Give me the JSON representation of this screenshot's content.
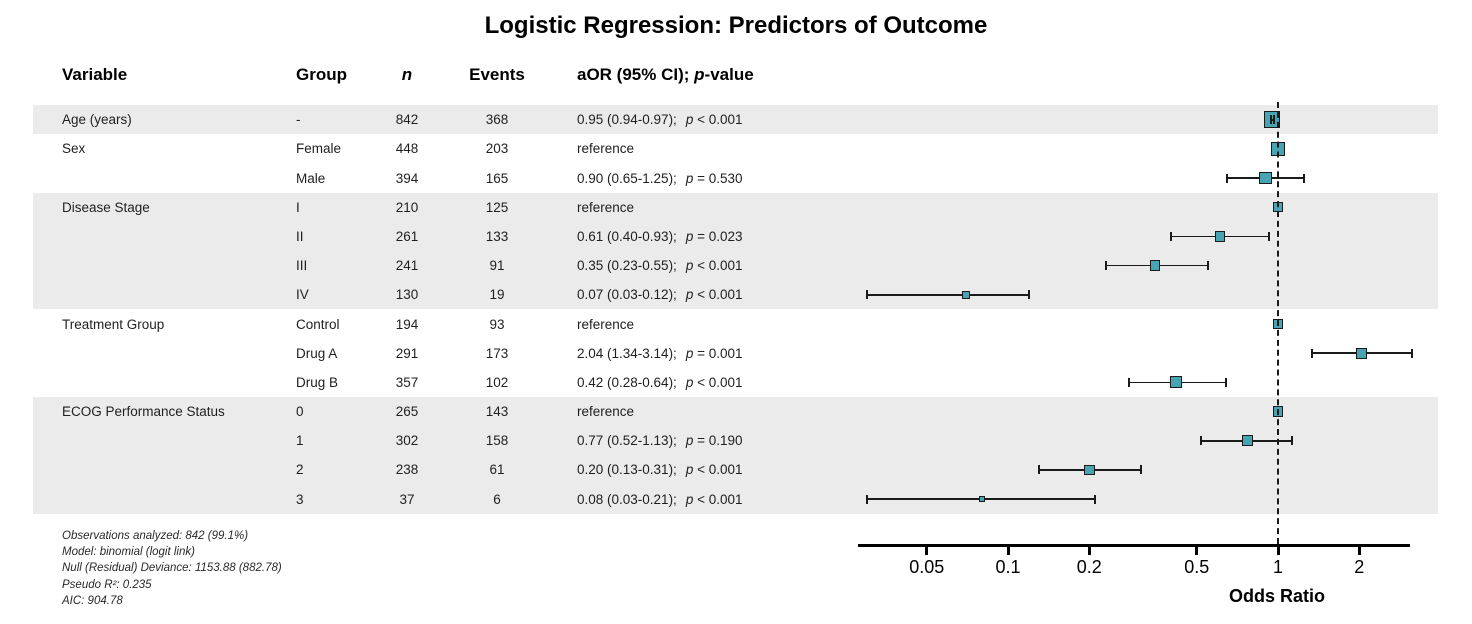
{
  "title": "Logistic Regression: Predictors of Outcome",
  "columns": {
    "variable": "Variable",
    "group": "Group",
    "n": "n",
    "events": "Events",
    "aor_prefix": "aOR (95% CI); ",
    "aor_p": "p",
    "aor_suffix": "-value"
  },
  "axis": {
    "label": "Odds Ratio",
    "tick_values": [
      0.05,
      0.1,
      0.2,
      0.5,
      1,
      2
    ],
    "tick_labels": [
      "0.05",
      "0.1",
      "0.2",
      "0.5",
      "1",
      "2"
    ],
    "scale": "log10",
    "reference_value": 1
  },
  "footnotes": [
    "Observations analyzed: 842 (99.1%)",
    "Model: binomial (logit link)",
    "Null (Residual) Deviance: 1153.88 (882.78)",
    "Pseudo R²: 0.235",
    "AIC: 904.78"
  ],
  "colors": {
    "box_fill": "#47a5b3",
    "box_border": "#1b1b1b",
    "band": "#ebebeb",
    "line": "#1a1a1a",
    "text": "#1f1f1f"
  },
  "chart_data": {
    "type": "scatter",
    "subtype": "forest-plot",
    "x_scale": "log10",
    "xlim": [
      0.028,
      3.2
    ],
    "xlabel": "Odds Ratio",
    "grid": false,
    "reference_line": 1,
    "rows": [
      {
        "variable": "Age (years)",
        "group": "-",
        "n": 842,
        "events": 368,
        "or": 0.95,
        "lo": 0.94,
        "hi": 0.97,
        "or_text": "0.95 (0.94-0.97);",
        "p_text": "p < 0.001",
        "ref": false,
        "band": true
      },
      {
        "variable": "Sex",
        "group": "Female",
        "n": 448,
        "events": 203,
        "or": 1,
        "or_text": "reference",
        "p_text": "",
        "ref": true,
        "band": false
      },
      {
        "variable": "",
        "group": "Male",
        "n": 394,
        "events": 165,
        "or": 0.9,
        "lo": 0.65,
        "hi": 1.25,
        "or_text": "0.90 (0.65-1.25);",
        "p_text": "p = 0.530",
        "ref": false,
        "band": false
      },
      {
        "variable": "Disease Stage",
        "group": "I",
        "n": 210,
        "events": 125,
        "or": 1,
        "or_text": "reference",
        "p_text": "",
        "ref": true,
        "band": true
      },
      {
        "variable": "",
        "group": "II",
        "n": 261,
        "events": 133,
        "or": 0.61,
        "lo": 0.4,
        "hi": 0.93,
        "or_text": "0.61 (0.40-0.93);",
        "p_text": "p = 0.023",
        "ref": false,
        "band": true
      },
      {
        "variable": "",
        "group": "III",
        "n": 241,
        "events": 91,
        "or": 0.35,
        "lo": 0.23,
        "hi": 0.55,
        "or_text": "0.35 (0.23-0.55);",
        "p_text": "p < 0.001",
        "ref": false,
        "band": true
      },
      {
        "variable": "",
        "group": "IV",
        "n": 130,
        "events": 19,
        "or": 0.07,
        "lo": 0.03,
        "hi": 0.12,
        "or_text": "0.07 (0.03-0.12);",
        "p_text": "p < 0.001",
        "ref": false,
        "band": true
      },
      {
        "variable": "Treatment Group",
        "group": "Control",
        "n": 194,
        "events": 93,
        "or": 1,
        "or_text": "reference",
        "p_text": "",
        "ref": true,
        "band": false
      },
      {
        "variable": "",
        "group": "Drug A",
        "n": 291,
        "events": 173,
        "or": 2.04,
        "lo": 1.34,
        "hi": 3.14,
        "or_text": "2.04 (1.34-3.14);",
        "p_text": "p = 0.001",
        "ref": false,
        "band": false
      },
      {
        "variable": "",
        "group": "Drug B",
        "n": 357,
        "events": 102,
        "or": 0.42,
        "lo": 0.28,
        "hi": 0.64,
        "or_text": "0.42 (0.28-0.64);",
        "p_text": "p < 0.001",
        "ref": false,
        "band": false
      },
      {
        "variable": "ECOG Performance Status",
        "group": "0",
        "n": 265,
        "events": 143,
        "or": 1,
        "or_text": "reference",
        "p_text": "",
        "ref": true,
        "band": true
      },
      {
        "variable": "",
        "group": "1",
        "n": 302,
        "events": 158,
        "or": 0.77,
        "lo": 0.52,
        "hi": 1.13,
        "or_text": "0.77 (0.52-1.13);",
        "p_text": "p = 0.190",
        "ref": false,
        "band": true
      },
      {
        "variable": "",
        "group": "2",
        "n": 238,
        "events": 61,
        "or": 0.2,
        "lo": 0.13,
        "hi": 0.31,
        "or_text": "0.20 (0.13-0.31);",
        "p_text": "p < 0.001",
        "ref": false,
        "band": true
      },
      {
        "variable": "",
        "group": "3",
        "n": 37,
        "events": 6,
        "or": 0.08,
        "lo": 0.03,
        "hi": 0.21,
        "or_text": "0.08 (0.03-0.21);",
        "p_text": "p < 0.001",
        "ref": false,
        "band": true
      }
    ]
  }
}
